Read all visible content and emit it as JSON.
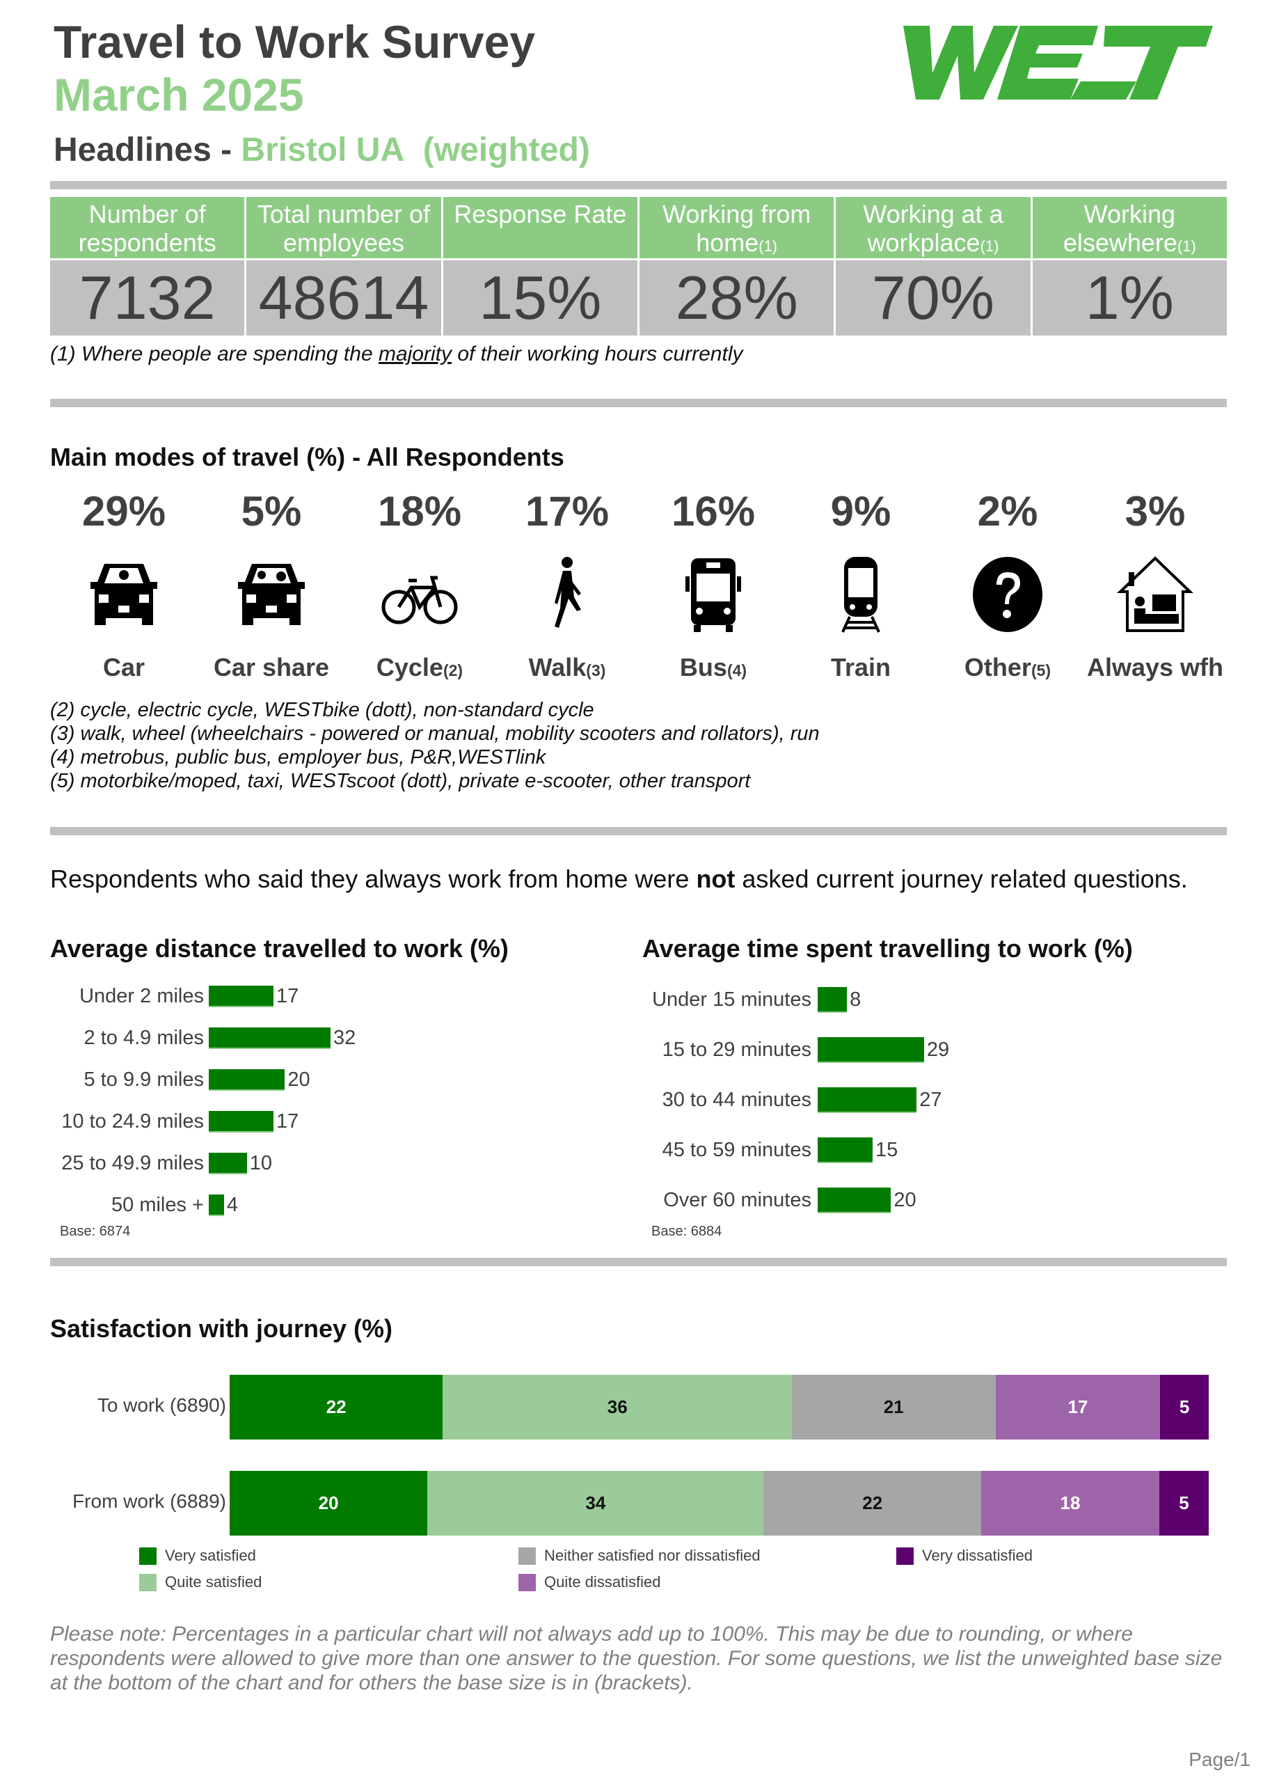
{
  "header": {
    "title": "Travel to Work Survey",
    "subtitle": "March 2025",
    "logo_text": "WEST",
    "brand_color": "#3fae3b"
  },
  "headlines": {
    "label": "Headlines -",
    "area": "Bristol UA",
    "weighting": "(weighted)"
  },
  "kpis": [
    {
      "label": "Number of respondents",
      "note": "",
      "value": "7132"
    },
    {
      "label": "Total number of employees",
      "note": "",
      "value": "48614"
    },
    {
      "label": "Response Rate",
      "note": "",
      "value": "15%"
    },
    {
      "label": "Working from home",
      "note": "(1)",
      "value": "28%"
    },
    {
      "label": "Working at a workplace",
      "note": "(1)",
      "value": "70%"
    },
    {
      "label": "Working elsewhere",
      "note": "(1)",
      "value": "1%"
    }
  ],
  "kpi_footnote": {
    "pre": "(1) Where people are spending the ",
    "em": "majority",
    "post": " of their working hours currently"
  },
  "modes": {
    "title": "Main modes of travel (%) - All Respondents",
    "items": [
      {
        "pct": "29%",
        "label": "Car",
        "note": "",
        "icon": "car-icon"
      },
      {
        "pct": "5%",
        "label": "Car share",
        "note": "",
        "icon": "car-share-icon"
      },
      {
        "pct": "18%",
        "label": "Cycle",
        "note": "(2)",
        "icon": "bicycle-icon"
      },
      {
        "pct": "17%",
        "label": "Walk",
        "note": "(3)",
        "icon": "walking-person-icon"
      },
      {
        "pct": "16%",
        "label": "Bus",
        "note": "(4)",
        "icon": "bus-icon"
      },
      {
        "pct": "9%",
        "label": "Train",
        "note": "",
        "icon": "train-icon"
      },
      {
        "pct": "2%",
        "label": "Other",
        "note": "(5)",
        "icon": "question-icon"
      },
      {
        "pct": "3%",
        "label": "Always wfh",
        "note": "",
        "icon": "home-office-icon"
      }
    ],
    "footnotes": [
      "(2) cycle, electric cycle, WESTbike (dott), non-standard cycle",
      "(3) walk, wheel (wheelchairs - powered or manual, mobility scooters and rollators), run",
      "(4) metrobus, public bus, employer bus, P&R,WESTlink",
      "(5) motorbike/moped, taxi, WESTscoot (dott), private e-scooter, other transport"
    ]
  },
  "wfh_note": {
    "pre": "Respondents who said they always work from home were ",
    "bold": "not",
    "post": " asked current journey related questions."
  },
  "chart_data": [
    {
      "type": "bar",
      "orientation": "horizontal",
      "title": "Average distance travelled to work (%)",
      "categories": [
        "Under 2 miles",
        "2 to 4.9 miles",
        "5 to 9.9 miles",
        "10 to 24.9 miles",
        "25 to 49.9 miles",
        "50 miles +"
      ],
      "values": [
        17,
        32,
        20,
        17,
        10,
        4
      ],
      "base": "Base: 6874",
      "color": "#007b00"
    },
    {
      "type": "bar",
      "orientation": "horizontal",
      "title": "Average time spent travelling to work (%)",
      "categories": [
        "Under 15 minutes",
        "15 to 29 minutes",
        "30 to 44 minutes",
        "45 to 59 minutes",
        "Over 60 minutes"
      ],
      "values": [
        8,
        29,
        27,
        15,
        20
      ],
      "base": "Base: 6884",
      "color": "#007b00"
    },
    {
      "type": "bar",
      "stacked": true,
      "orientation": "horizontal",
      "title": "Satisfaction with journey (%)",
      "categories": [
        "To work (6890)",
        "From work (6889)"
      ],
      "series": [
        {
          "name": "Very satisfied",
          "values": [
            22,
            20
          ],
          "color": "#007b00",
          "text": "#ffffff"
        },
        {
          "name": "Quite satisfied",
          "values": [
            36,
            34
          ],
          "color": "#9bcb98",
          "text": "#111111"
        },
        {
          "name": "Neither satisfied nor dissatisfied",
          "values": [
            21,
            22
          ],
          "color": "#a6a6a6",
          "text": "#111111"
        },
        {
          "name": "Quite dissatisfied",
          "values": [
            17,
            18
          ],
          "color": "#9e64a9",
          "text": "#ffffff"
        },
        {
          "name": "Very dissatisfied",
          "values": [
            5,
            5
          ],
          "color": "#5c006e",
          "text": "#ffffff"
        }
      ],
      "legend": "bottom"
    }
  ],
  "footer": {
    "note": "Please note: Percentages in a particular chart will not always add up to 100%. This may be due to rounding, or where respondents were allowed to give more than one answer to the question. For some questions, we list the unweighted base size at the bottom of the chart and for others the base size is in (brackets).",
    "page": "Page/1"
  }
}
